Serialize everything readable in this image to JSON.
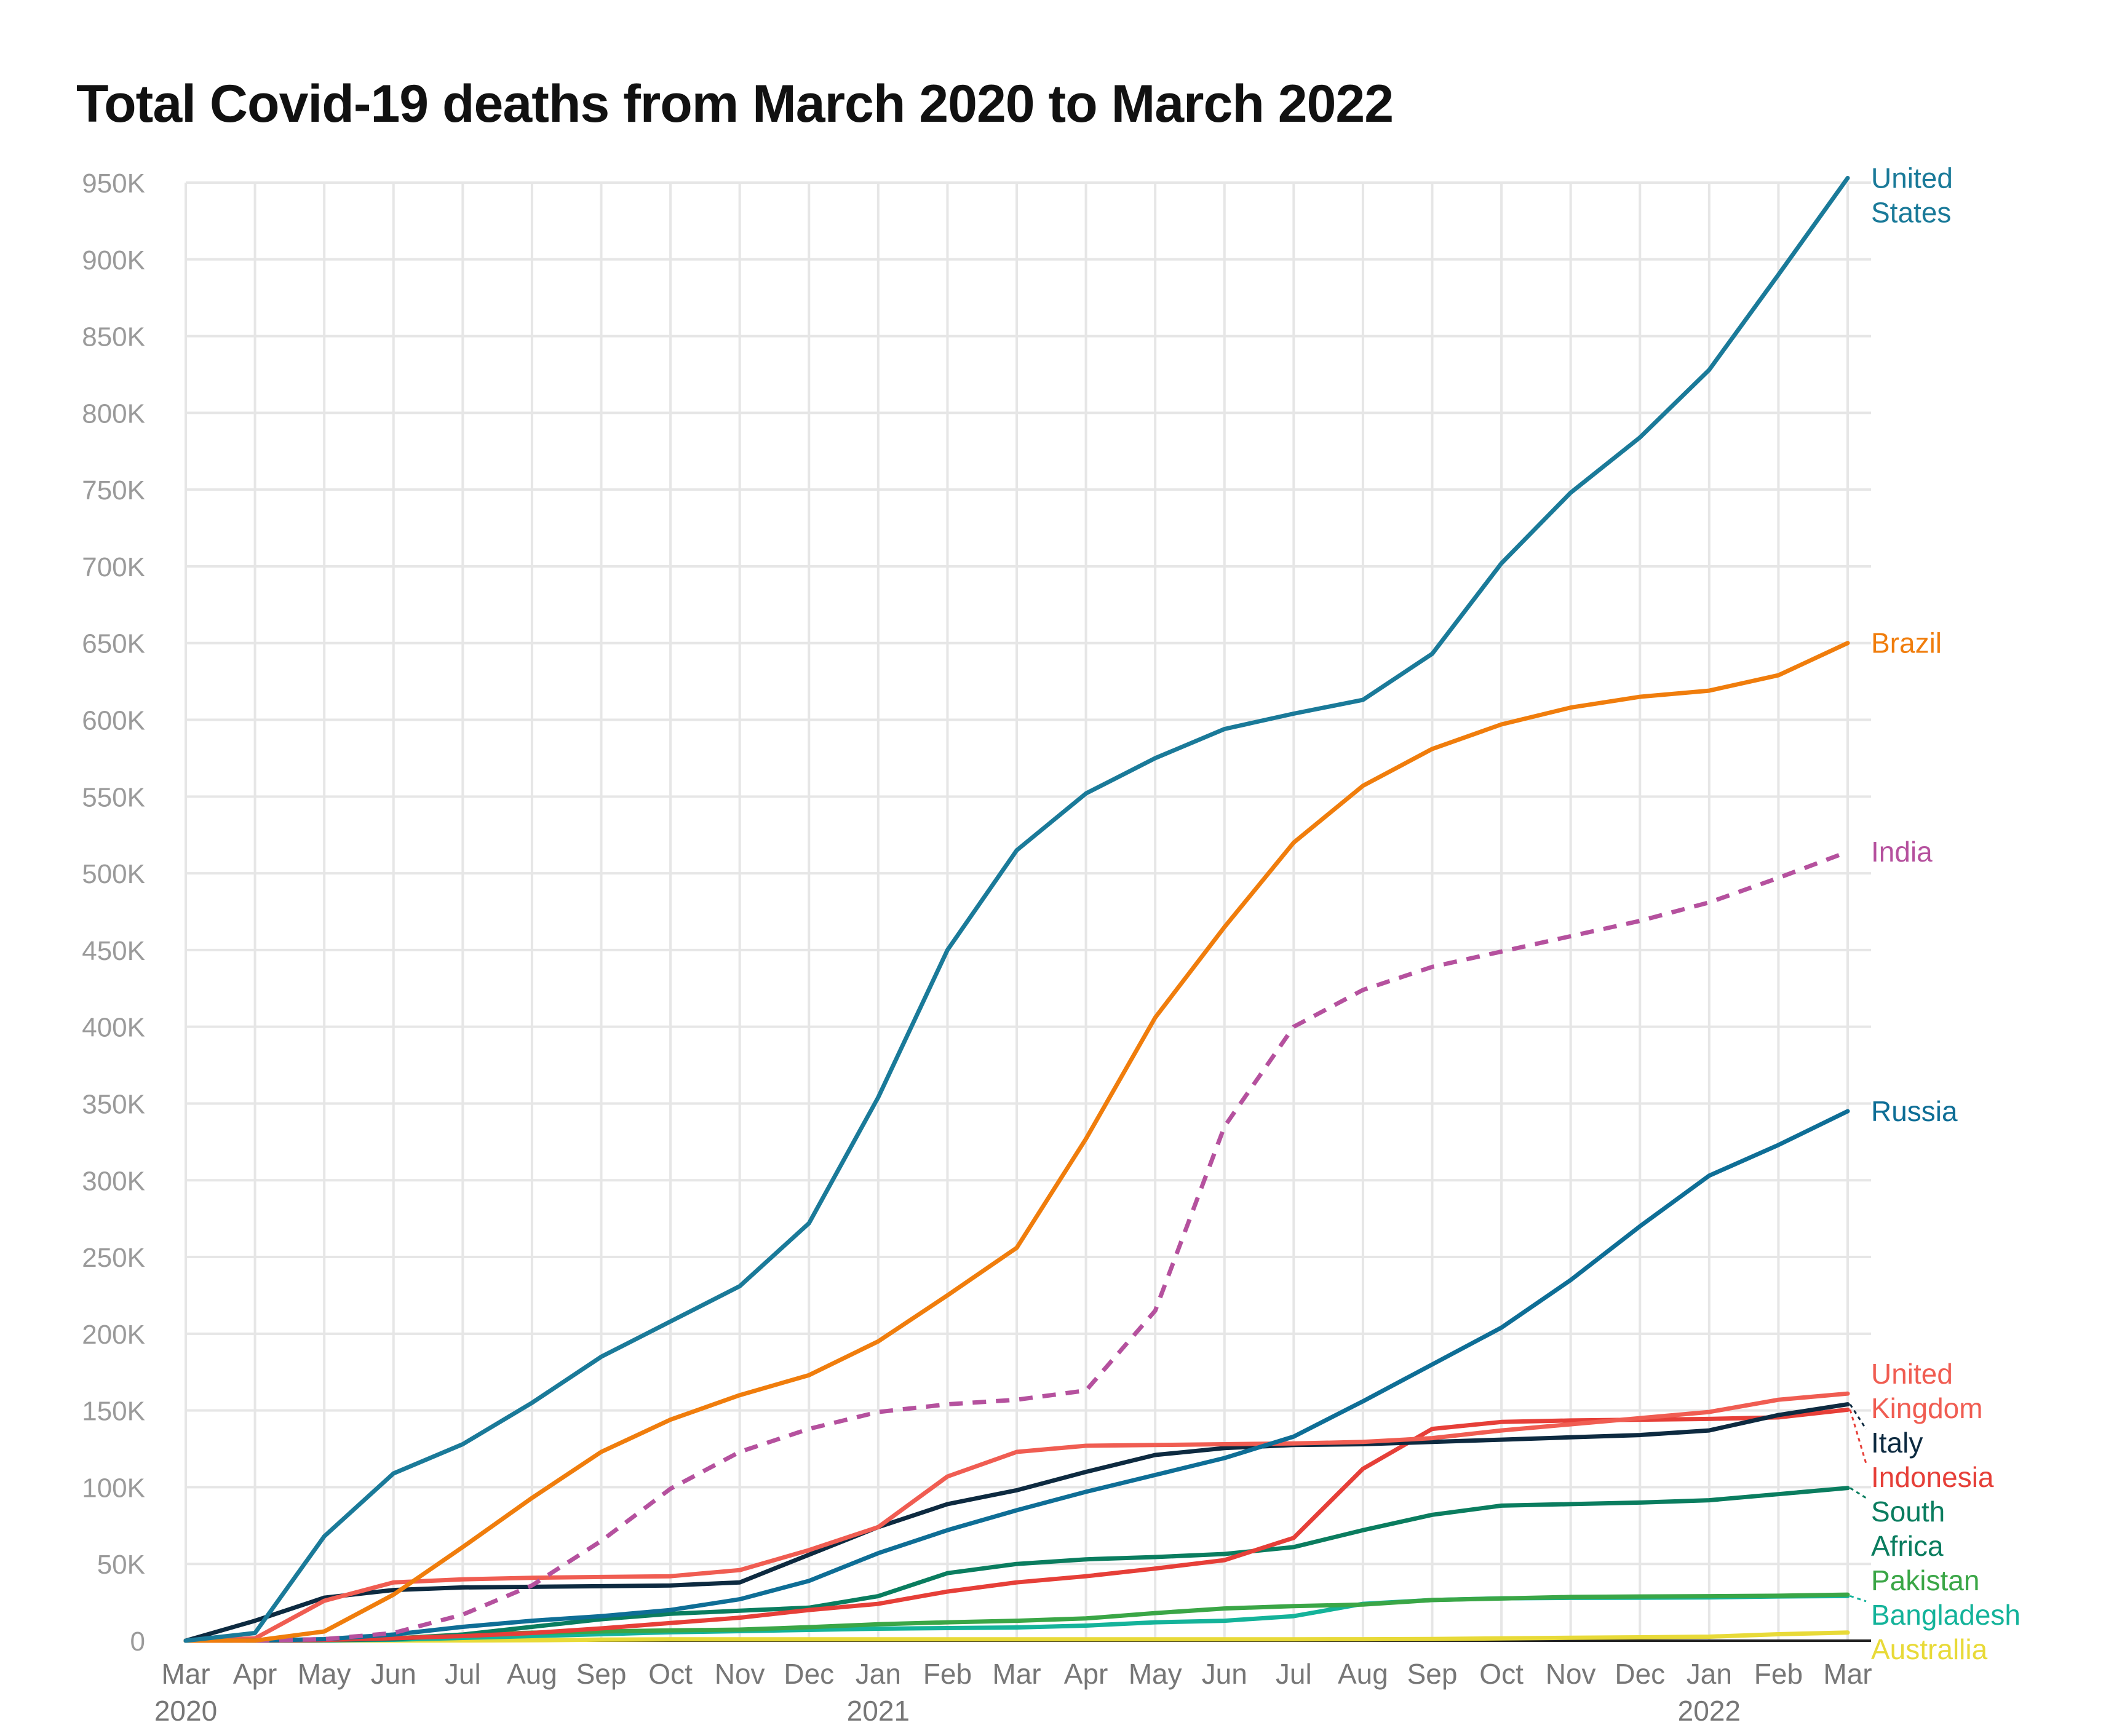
{
  "chart_data": {
    "type": "line",
    "title": "Total Covid-19 deaths from March 2020 to March 2022",
    "xlabel": "",
    "ylabel": "",
    "ylim": [
      0,
      950000
    ],
    "yticks": [
      0,
      50000,
      100000,
      150000,
      200000,
      250000,
      300000,
      350000,
      400000,
      450000,
      500000,
      550000,
      600000,
      650000,
      700000,
      750000,
      800000,
      850000,
      900000,
      950000
    ],
    "ytick_labels": [
      "0",
      "50K",
      "100K",
      "150K",
      "200K",
      "250K",
      "300K",
      "350K",
      "400K",
      "450K",
      "500K",
      "550K",
      "600K",
      "650K",
      "700K",
      "750K",
      "800K",
      "850K",
      "900K",
      "950K"
    ],
    "x": [
      "2020-03",
      "2020-04",
      "2020-05",
      "2020-06",
      "2020-07",
      "2020-08",
      "2020-09",
      "2020-10",
      "2020-11",
      "2020-12",
      "2021-01",
      "2021-02",
      "2021-03",
      "2021-04",
      "2021-05",
      "2021-06",
      "2021-07",
      "2021-08",
      "2021-09",
      "2021-10",
      "2021-11",
      "2021-12",
      "2022-01",
      "2022-02",
      "2022-03"
    ],
    "xtick_labels": [
      "Mar",
      "Apr",
      "May",
      "Jun",
      "Jul",
      "Aug",
      "Sep",
      "Oct",
      "Nov",
      "Dec",
      "Jan",
      "Feb",
      "Mar",
      "Apr",
      "May",
      "Jun",
      "Jul",
      "Aug",
      "Sep",
      "Oct",
      "Nov",
      "Dec",
      "Jan",
      "Feb",
      "Mar"
    ],
    "year_labels": [
      {
        "label": "2020",
        "x": "2020-03"
      },
      {
        "label": "2021",
        "x": "2021-01"
      },
      {
        "label": "2022",
        "x": "2022-01"
      }
    ],
    "grid": true,
    "legend": "direct labels at line ends (right)",
    "series": [
      {
        "name": "United States",
        "label_lines": [
          "United",
          "States"
        ],
        "color": "#1a7a99",
        "dashed": false,
        "values": [
          0,
          5000,
          68000,
          109000,
          128000,
          155000,
          185000,
          208000,
          231000,
          272000,
          354000,
          450000,
          515000,
          552000,
          575000,
          594000,
          604000,
          613000,
          643000,
          702000,
          748000,
          784000,
          828000,
          890000,
          953000
        ]
      },
      {
        "name": "Brazil",
        "label_lines": [
          "Brazil"
        ],
        "color": "#f07d0c",
        "dashed": false,
        "values": [
          0,
          100,
          6000,
          30000,
          61000,
          93000,
          123000,
          144000,
          160000,
          173000,
          195000,
          225000,
          256000,
          327000,
          406000,
          465000,
          520000,
          557000,
          581000,
          597000,
          608000,
          615000,
          619000,
          629000,
          650000
        ]
      },
      {
        "name": "India",
        "label_lines": [
          "India"
        ],
        "color": "#b5519e",
        "dashed": true,
        "values": [
          0,
          50,
          1000,
          5000,
          17000,
          36000,
          65000,
          99000,
          123000,
          138000,
          149000,
          154000,
          157000,
          163000,
          215000,
          335000,
          400000,
          424000,
          439000,
          449000,
          459000,
          469000,
          481000,
          497000,
          514000
        ]
      },
      {
        "name": "Russia",
        "label_lines": [
          "Russia"
        ],
        "color": "#0e6e96",
        "dashed": false,
        "values": [
          0,
          100,
          1000,
          4000,
          9000,
          13000,
          16000,
          20000,
          27000,
          39000,
          57000,
          72000,
          85000,
          97000,
          108000,
          119000,
          133000,
          156000,
          180000,
          204000,
          235000,
          270000,
          303000,
          323000,
          345000
        ]
      },
      {
        "name": "United Kingdom",
        "label_lines": [
          "United",
          "Kingdom"
        ],
        "color": "#f05d52",
        "dashed": false,
        "values": [
          0,
          1500,
          26000,
          38000,
          40000,
          41000,
          41500,
          42000,
          46000,
          59000,
          74000,
          107000,
          123000,
          127000,
          127500,
          128000,
          128500,
          129500,
          132000,
          137000,
          141000,
          145000,
          149000,
          157000,
          161000
        ]
      },
      {
        "name": "Italy",
        "label_lines": [
          "Italy"
        ],
        "color": "#0d2a40",
        "dashed": false,
        "values": [
          0,
          13000,
          28000,
          33000,
          34700,
          35100,
          35500,
          36000,
          38000,
          56000,
          74000,
          89000,
          98000,
          110000,
          121000,
          125500,
          127500,
          128000,
          129500,
          131000,
          132500,
          134000,
          137000,
          147000,
          154000
        ]
      },
      {
        "name": "Indonesia",
        "label_lines": [
          "Indonesia"
        ],
        "color": "#e63f38",
        "dashed": false,
        "values": [
          0,
          50,
          500,
          1600,
          3000,
          5000,
          8000,
          11500,
          15000,
          20000,
          24000,
          32000,
          38000,
          42000,
          47000,
          52500,
          67000,
          112000,
          138000,
          142500,
          143500,
          144000,
          144500,
          145500,
          150500
        ]
      },
      {
        "name": "South Africa",
        "label_lines": [
          "South",
          "Africa"
        ],
        "color": "#0a7d5f",
        "dashed": false,
        "values": [
          0,
          50,
          200,
          1000,
          4000,
          9000,
          14000,
          17500,
          19500,
          21500,
          29000,
          44000,
          50000,
          53000,
          54500,
          56500,
          61000,
          72000,
          82000,
          88000,
          89000,
          90000,
          91500,
          95500,
          99500
        ]
      },
      {
        "name": "Pakistan",
        "label_lines": [
          "Pakistan"
        ],
        "color": "#3aa646",
        "dashed": false,
        "values": [
          0,
          50,
          300,
          1500,
          4000,
          5200,
          6000,
          6700,
          7200,
          8800,
          10700,
          12000,
          13000,
          14500,
          18000,
          21000,
          22500,
          23500,
          26500,
          27500,
          28500,
          28800,
          29000,
          29300,
          30000
        ]
      },
      {
        "name": "Bangladesh",
        "label_lines": [
          "Bangladesh"
        ],
        "color": "#14b39a",
        "dashed": false,
        "values": [
          0,
          50,
          200,
          600,
          1800,
          3000,
          4200,
          5500,
          6200,
          7000,
          7800,
          8200,
          8600,
          9800,
          12000,
          13000,
          16000,
          24000,
          26500,
          27600,
          27900,
          28000,
          28200,
          28800,
          29100
        ]
      },
      {
        "name": "Australlia",
        "label_lines": [
          "Australlia"
        ],
        "color": "#e8da38",
        "dashed": false,
        "values": [
          0,
          60,
          100,
          100,
          150,
          300,
          700,
          900,
          900,
          900,
          900,
          900,
          900,
          900,
          900,
          900,
          920,
          950,
          1100,
          1500,
          1900,
          2200,
          2600,
          4200,
          5300
        ]
      }
    ]
  }
}
